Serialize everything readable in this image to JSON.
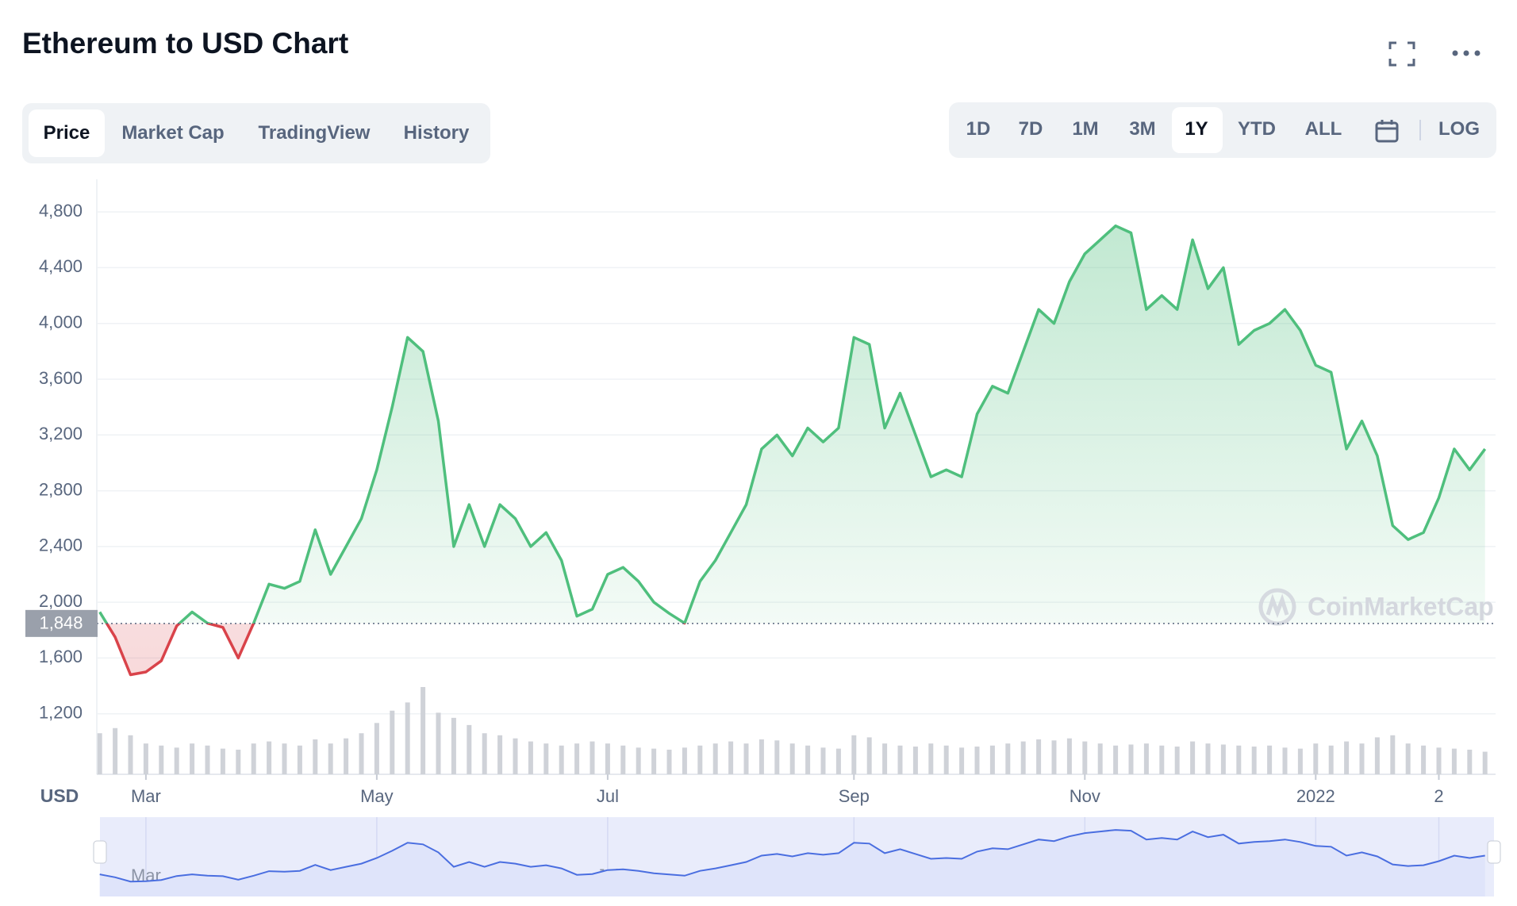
{
  "ui": {
    "title": "Ethereum to USD Chart",
    "tabs": [
      "Price",
      "Market Cap",
      "TradingView",
      "History"
    ],
    "ranges": [
      "1D",
      "7D",
      "1M",
      "3M",
      "1Y",
      "YTD",
      "ALL"
    ],
    "log_button": "LOG",
    "currency": "USD",
    "watermark": "CoinMarketCap"
  },
  "chart_data": {
    "type": "line",
    "categories": [
      null,
      null,
      null,
      "Mar",
      null,
      null,
      null,
      null,
      null,
      null,
      null,
      null,
      null,
      null,
      null,
      null,
      null,
      null,
      "May",
      null,
      null,
      null,
      null,
      null,
      null,
      null,
      null,
      null,
      null,
      null,
      null,
      null,
      null,
      "Jul",
      null,
      null,
      null,
      null,
      null,
      null,
      null,
      null,
      null,
      null,
      null,
      null,
      null,
      null,
      null,
      "Sep",
      null,
      null,
      null,
      null,
      null,
      null,
      null,
      null,
      null,
      null,
      null,
      null,
      null,
      null,
      "Nov",
      null,
      null,
      null,
      null,
      null,
      null,
      null,
      null,
      null,
      null,
      null,
      null,
      null,
      null,
      "2022",
      null,
      null,
      null,
      null,
      null,
      null,
      null,
      "2",
      null,
      null,
      null
    ],
    "values": [
      1930,
      1750,
      1480,
      1500,
      1580,
      1830,
      1930,
      1850,
      1820,
      1600,
      1850,
      2130,
      2100,
      2150,
      2520,
      2200,
      2400,
      2600,
      2950,
      3400,
      3900,
      3800,
      3300,
      2400,
      2700,
      2400,
      2700,
      2600,
      2400,
      2500,
      2300,
      1900,
      1950,
      2200,
      2250,
      2150,
      2000,
      1920,
      1850,
      2150,
      2300,
      2500,
      2700,
      3100,
      3200,
      3050,
      3250,
      3150,
      3250,
      3900,
      3850,
      3250,
      3500,
      3200,
      2900,
      2950,
      2900,
      3350,
      3550,
      3500,
      3800,
      4100,
      4000,
      4300,
      4500,
      4600,
      4700,
      4650,
      4100,
      4200,
      4100,
      4600,
      4250,
      4400,
      3850,
      3950,
      4000,
      4100,
      3950,
      3700,
      3650,
      3100,
      3300,
      3050,
      2550,
      2450,
      2500,
      2750,
      3100,
      2950,
      3100
    ],
    "volume": [
      40,
      45,
      38,
      30,
      28,
      26,
      30,
      28,
      25,
      24,
      30,
      32,
      30,
      28,
      34,
      30,
      35,
      40,
      50,
      62,
      70,
      85,
      60,
      55,
      48,
      40,
      38,
      35,
      32,
      30,
      28,
      30,
      32,
      30,
      28,
      26,
      25,
      24,
      26,
      28,
      30,
      32,
      30,
      34,
      33,
      30,
      28,
      26,
      25,
      38,
      36,
      30,
      28,
      27,
      30,
      28,
      26,
      27,
      28,
      30,
      32,
      34,
      33,
      35,
      32,
      30,
      28,
      29,
      30,
      28,
      27,
      32,
      30,
      29,
      28,
      27,
      28,
      26,
      25,
      30,
      28,
      32,
      30,
      36,
      38,
      30,
      28,
      26,
      25,
      24,
      22
    ],
    "ylim": [
      800,
      5000
    ],
    "yticks": [
      {
        "value": 1200,
        "label": "1,200"
      },
      {
        "value": 1600,
        "label": "1,600"
      },
      {
        "value": 2000,
        "label": "2,000"
      },
      {
        "value": 2400,
        "label": "2,400"
      },
      {
        "value": 2800,
        "label": "2,800"
      },
      {
        "value": 3200,
        "label": "3,200"
      },
      {
        "value": 3600,
        "label": "3,600"
      },
      {
        "value": 4000,
        "label": "4,000"
      },
      {
        "value": 4400,
        "label": "4,400"
      },
      {
        "value": 4800,
        "label": "4,800"
      }
    ],
    "reference": {
      "value": 1848,
      "label": "1,848"
    },
    "color_up": "#4fbf7d",
    "color_down": "#d9434a",
    "volume_color": "#cfd2d8",
    "navigator_color": "#4a6ee0",
    "grid": true
  }
}
